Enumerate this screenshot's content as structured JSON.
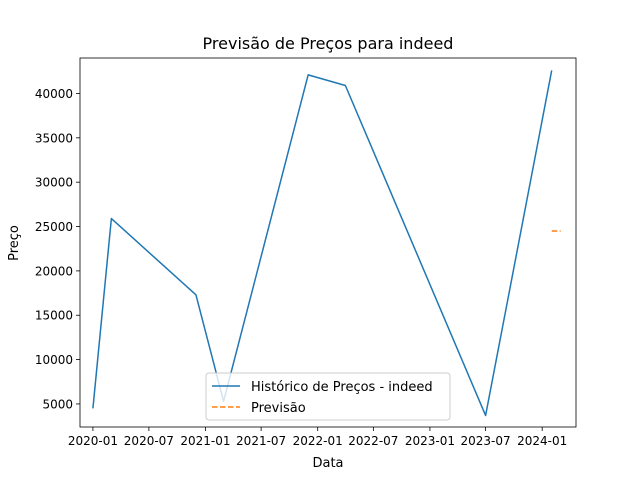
{
  "chart_data": {
    "type": "line",
    "title": "Previsão de Preços para indeed",
    "xlabel": "Data",
    "ylabel": "Preço",
    "x_ticks": [
      "2020-01",
      "2020-07",
      "2021-01",
      "2021-07",
      "2022-01",
      "2022-07",
      "2023-01",
      "2023-07",
      "2024-01"
    ],
    "y_ticks": [
      5000,
      10000,
      15000,
      20000,
      25000,
      30000,
      35000,
      40000
    ],
    "xlim": [
      "2019-11-20",
      "2024-04-20"
    ],
    "ylim": [
      2400,
      44000
    ],
    "grid": false,
    "legend_position": "lower center",
    "series": [
      {
        "name": "Histórico de Preços - indeed",
        "color": "#1f77b4",
        "style": "solid",
        "x": [
          "2020-01-01",
          "2020-03-01",
          "2020-12-01",
          "2021-03-01",
          "2021-12-01",
          "2022-04-01",
          "2023-07-01",
          "2024-02-01"
        ],
        "y": [
          4500,
          25900,
          17300,
          5300,
          42100,
          40900,
          3700,
          42600
        ]
      },
      {
        "name": "Previsão",
        "color": "#ff7f0e",
        "style": "dashed",
        "x": [
          "2024-02-01",
          "2024-03-01"
        ],
        "y": [
          24500,
          24500
        ]
      }
    ]
  }
}
